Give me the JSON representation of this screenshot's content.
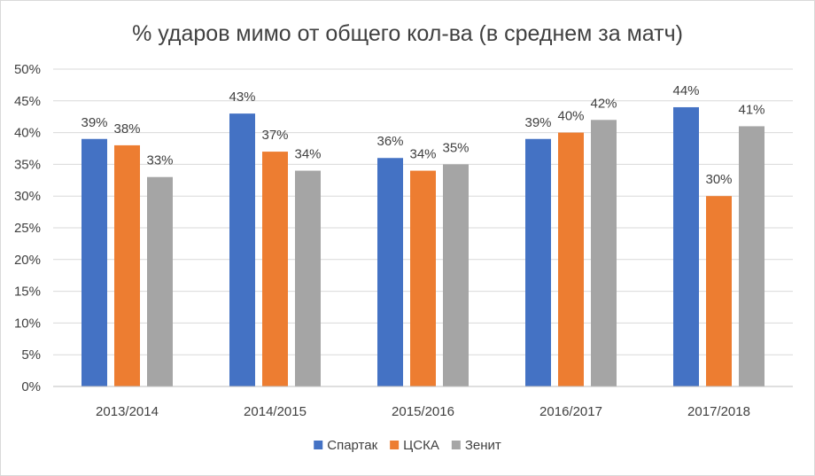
{
  "chart_data": {
    "type": "bar",
    "title": "% ударов мимо от общего кол-ва (в среднем за матч)",
    "categories": [
      "2013/2014",
      "2014/2015",
      "2015/2016",
      "2016/2017",
      "2017/2018"
    ],
    "series": [
      {
        "name": "Спартак",
        "color": "#4472c4",
        "values": [
          39,
          43,
          36,
          39,
          44
        ],
        "labels": [
          "39%",
          "43%",
          "36%",
          "39%",
          "44%"
        ]
      },
      {
        "name": "ЦСКА",
        "color": "#ed7d31",
        "values": [
          38,
          37,
          34,
          40,
          30
        ],
        "labels": [
          "38%",
          "37%",
          "34%",
          "40%",
          "30%"
        ]
      },
      {
        "name": "Зенит",
        "color": "#a5a5a5",
        "values": [
          33,
          34,
          35,
          42,
          41
        ],
        "labels": [
          "33%",
          "34%",
          "35%",
          "42%",
          "41%"
        ]
      }
    ],
    "ylim": [
      0,
      50
    ],
    "yticks": [
      0,
      5,
      10,
      15,
      20,
      25,
      30,
      35,
      40,
      45,
      50
    ],
    "ytick_labels": [
      "0%",
      "5%",
      "10%",
      "15%",
      "20%",
      "25%",
      "30%",
      "35%",
      "40%",
      "45%",
      "50%"
    ],
    "grid": true,
    "legend_position": "bottom",
    "gridline_color": "#d9d9d9",
    "axis_color": "#bfbfbf"
  }
}
